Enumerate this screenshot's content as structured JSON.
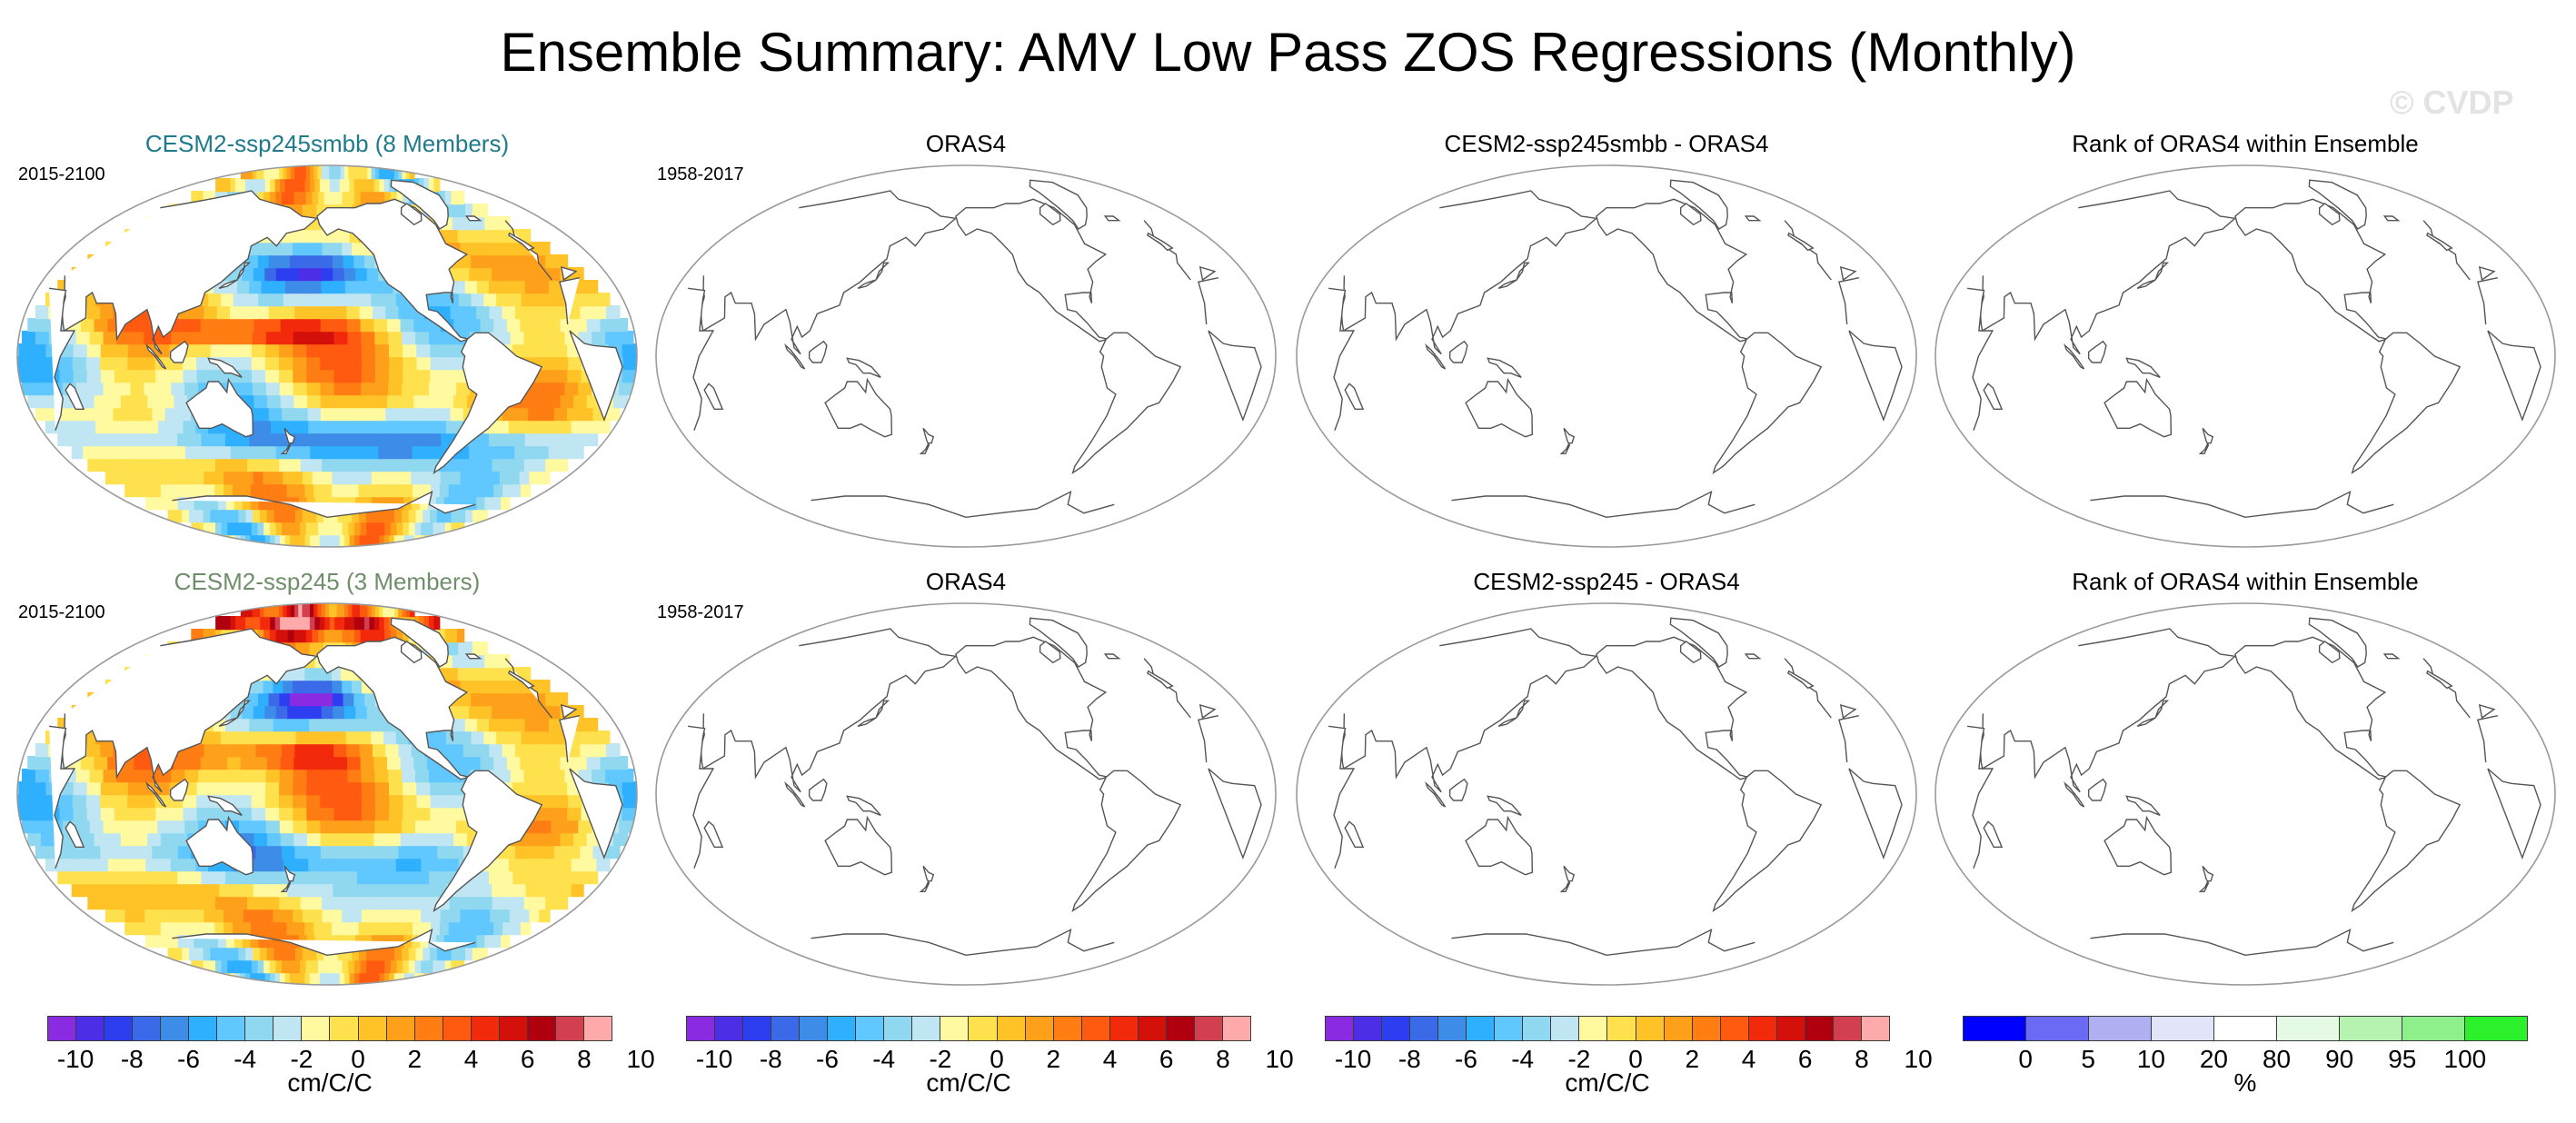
{
  "figure": {
    "title": "Ensemble Summary: AMV Low Pass ZOS Regressions (Monthly)",
    "watermark": "© CVDP"
  },
  "colors": {
    "title_ensemble_1": "#1f7a8c",
    "title_ensemble_2": "#6f8f6a",
    "coastline": "#555555",
    "border": "#9a9a9a"
  },
  "rows": [
    {
      "panels": [
        {
          "title": "CESM2-ssp245smbb (8 Members)",
          "period": "2015-2100",
          "filled": true,
          "pattern": "smbb"
        },
        {
          "title": "ORAS4",
          "period": "1958-2017",
          "filled": false
        },
        {
          "title": "CESM2-ssp245smbb - ORAS4",
          "period": "",
          "filled": false
        },
        {
          "title": "Rank of ORAS4 within Ensemble",
          "period": "",
          "filled": false
        }
      ]
    },
    {
      "panels": [
        {
          "title": "CESM2-ssp245 (3 Members)",
          "period": "2015-2100",
          "filled": true,
          "pattern": "ssp245"
        },
        {
          "title": "ORAS4",
          "period": "1958-2017",
          "filled": false
        },
        {
          "title": "CESM2-ssp245 - ORAS4",
          "period": "",
          "filled": false
        },
        {
          "title": "Rank of ORAS4 within Ensemble",
          "period": "",
          "filled": false
        }
      ]
    }
  ],
  "colorbars": [
    {
      "unit": "cm/C/C",
      "tick_labels": [
        "-10",
        "-8",
        "-6",
        "-4",
        "-2",
        "0",
        "2",
        "4",
        "6",
        "8",
        "10"
      ],
      "colors": [
        "#8a2be2",
        "#4b2ee6",
        "#2c3ef0",
        "#3a6ae8",
        "#3d8ce8",
        "#2fb0ff",
        "#60c8ff",
        "#8fd8f0",
        "#bfe6f2",
        "#fff9a0",
        "#ffe14d",
        "#ffc227",
        "#ffa01a",
        "#ff7d12",
        "#ff5a10",
        "#f22a0b",
        "#d4100a",
        "#b00010",
        "#d24050",
        "#ffaaaa"
      ]
    },
    {
      "unit": "cm/C/C",
      "tick_labels": [
        "-10",
        "-8",
        "-6",
        "-4",
        "-2",
        "0",
        "2",
        "4",
        "6",
        "8",
        "10"
      ],
      "colors": [
        "#8a2be2",
        "#4b2ee6",
        "#2c3ef0",
        "#3a6ae8",
        "#3d8ce8",
        "#2fb0ff",
        "#60c8ff",
        "#8fd8f0",
        "#bfe6f2",
        "#fff9a0",
        "#ffe14d",
        "#ffc227",
        "#ffa01a",
        "#ff7d12",
        "#ff5a10",
        "#f22a0b",
        "#d4100a",
        "#b00010",
        "#d24050",
        "#ffaaaa"
      ]
    },
    {
      "unit": "cm/C/C",
      "tick_labels": [
        "-10",
        "-8",
        "-6",
        "-4",
        "-2",
        "0",
        "2",
        "4",
        "6",
        "8",
        "10"
      ],
      "colors": [
        "#8a2be2",
        "#4b2ee6",
        "#2c3ef0",
        "#3a6ae8",
        "#3d8ce8",
        "#2fb0ff",
        "#60c8ff",
        "#8fd8f0",
        "#bfe6f2",
        "#fff9a0",
        "#ffe14d",
        "#ffc227",
        "#ffa01a",
        "#ff7d12",
        "#ff5a10",
        "#f22a0b",
        "#d4100a",
        "#b00010",
        "#d24050",
        "#ffaaaa"
      ]
    },
    {
      "unit": "%",
      "tick_labels": [
        "0",
        "5",
        "10",
        "20",
        "80",
        "90",
        "95",
        "100"
      ],
      "colors": [
        "#0000ff",
        "#6a6af5",
        "#aeb0f2",
        "#e2e4fa",
        "#ffffff",
        "#e4fae4",
        "#b6f2b0",
        "#8ef08a",
        "#2cf02c"
      ]
    }
  ]
}
